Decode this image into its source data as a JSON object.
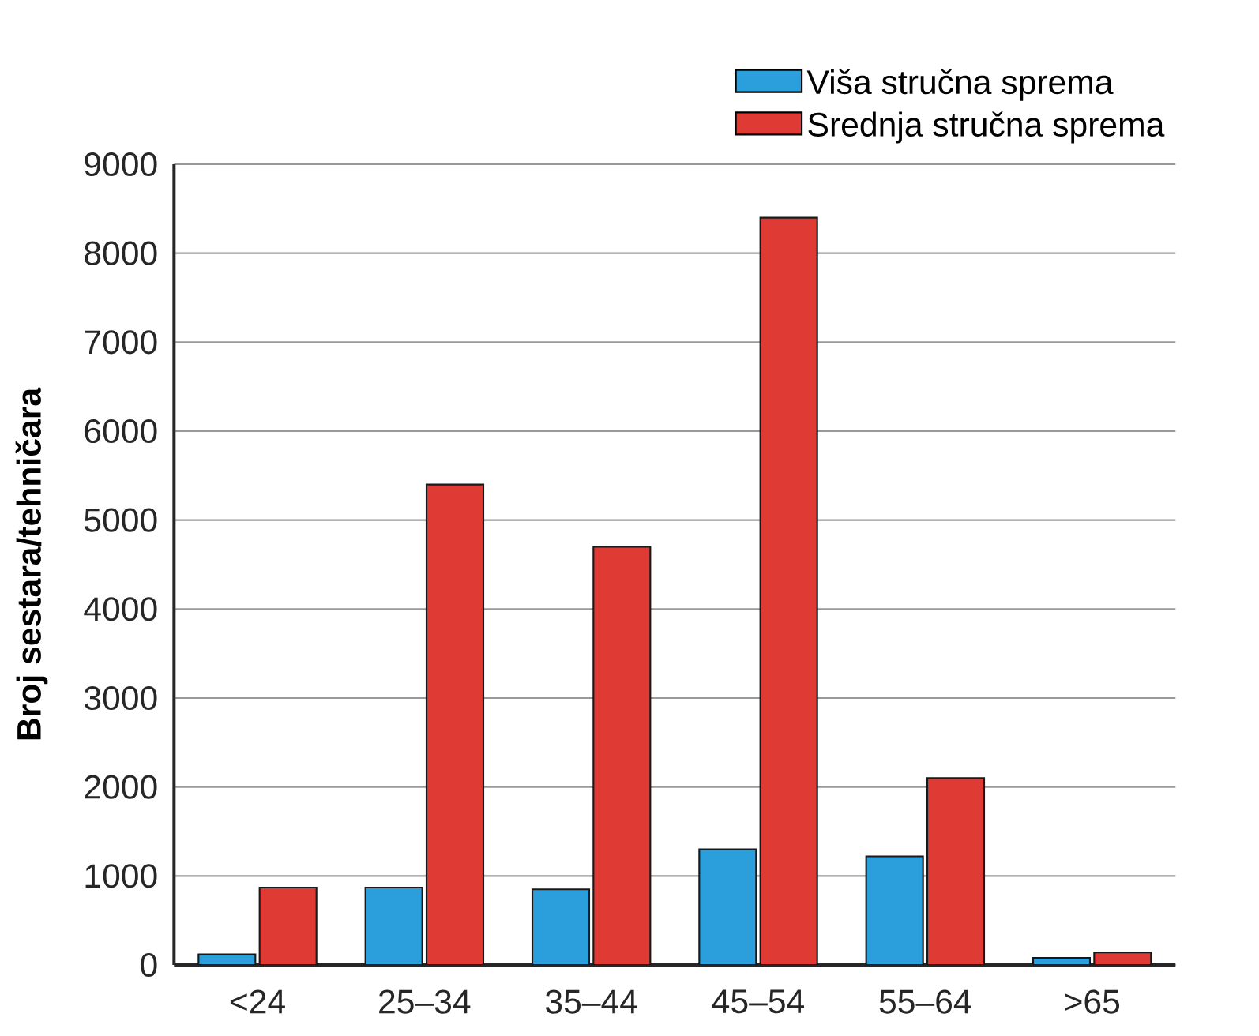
{
  "chart_data": {
    "type": "bar",
    "ylabel": "Broj sestara/tehničara",
    "categories": [
      "<24",
      "25–34",
      "35–44",
      "45–54",
      "55–64",
      ">65"
    ],
    "series": [
      {
        "name": "Viša stručna sprema",
        "color": "#2a9fdc",
        "values": [
          120,
          870,
          850,
          1300,
          1220,
          80
        ]
      },
      {
        "name": "Srednja stručna sprema",
        "color": "#e03a35",
        "values": [
          870,
          5400,
          4700,
          8400,
          2100,
          140
        ]
      }
    ],
    "ylim": [
      0,
      9000
    ],
    "yticks": [
      0,
      1000,
      2000,
      3000,
      4000,
      5000,
      6000,
      7000,
      8000,
      9000
    ],
    "grid": "y",
    "legend": "top right"
  }
}
